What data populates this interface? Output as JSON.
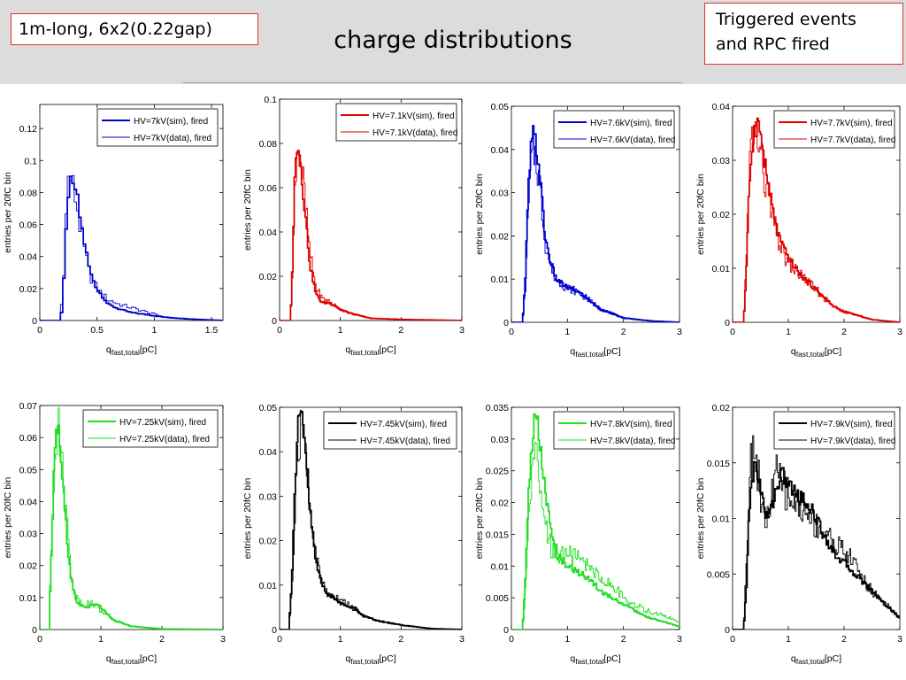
{
  "header": {
    "left_box": "1m-long, 6x2(0.22gap)",
    "title": "charge distributions",
    "right_box_line1": "Triggered events",
    "right_box_line2": "and RPC fired"
  },
  "chart_data": [
    {
      "type": "line",
      "xlabel": "q_fast,total[pC]",
      "ylabel": "entries per 20fC bin",
      "xlim": [
        0,
        1.6
      ],
      "ylim": [
        0,
        0.135
      ],
      "xticks": [
        "0",
        "0.5",
        "1",
        "1.5"
      ],
      "xtick_values": [
        0,
        0.5,
        1,
        1.5
      ],
      "yticks": [
        "0",
        "0.02",
        "0.04",
        "0.06",
        "0.08",
        "0.1",
        "0.12"
      ],
      "ytick_values": [
        0,
        0.02,
        0.04,
        0.06,
        0.08,
        0.1,
        0.12
      ],
      "color": "#0000cc",
      "series": [
        {
          "name": "HV=7kV(sim), fired",
          "kind": "sim",
          "x": [
            0.1,
            0.18,
            0.2,
            0.22,
            0.24,
            0.26,
            0.28,
            0.3,
            0.32,
            0.34,
            0.36,
            0.4,
            0.44,
            0.5,
            0.55,
            0.6,
            0.7,
            0.8,
            0.9,
            1.0,
            1.1,
            1.3,
            1.6
          ],
          "y": [
            0,
            0,
            0.01,
            0.04,
            0.07,
            0.09,
            0.08,
            0.085,
            0.08,
            0.07,
            0.06,
            0.045,
            0.03,
            0.02,
            0.015,
            0.01,
            0.007,
            0.005,
            0.004,
            0.003,
            0.002,
            0.001,
            0
          ]
        },
        {
          "name": "HV=7kV(data), fired",
          "kind": "data",
          "x": [
            0.1,
            0.17,
            0.2,
            0.22,
            0.24,
            0.26,
            0.28,
            0.3,
            0.32,
            0.34,
            0.36,
            0.4,
            0.44,
            0.5,
            0.55,
            0.6,
            0.7,
            0.8,
            0.9,
            1.0,
            1.1,
            1.3,
            1.6
          ],
          "y": [
            0,
            0,
            0.015,
            0.05,
            0.08,
            0.095,
            0.085,
            0.08,
            0.075,
            0.065,
            0.055,
            0.04,
            0.028,
            0.02,
            0.016,
            0.013,
            0.01,
            0.008,
            0.006,
            0.004,
            0.002,
            0.001,
            0
          ]
        }
      ]
    },
    {
      "type": "line",
      "xlabel": "q_fast,total[pC]",
      "ylabel": "entries per 20fC bin",
      "xlim": [
        0,
        3
      ],
      "ylim": [
        0,
        0.1
      ],
      "xticks": [
        "0",
        "1",
        "2",
        "3"
      ],
      "xtick_values": [
        0,
        1,
        2,
        3
      ],
      "yticks": [
        "0",
        "0.02",
        "0.04",
        "0.06",
        "0.08",
        "0.1"
      ],
      "ytick_values": [
        0,
        0.02,
        0.04,
        0.06,
        0.08,
        0.1
      ],
      "color": "#dd0000",
      "series": [
        {
          "name": "HV=7.1kV(sim), fired",
          "kind": "sim",
          "x": [
            0.1,
            0.18,
            0.22,
            0.26,
            0.3,
            0.35,
            0.4,
            0.45,
            0.5,
            0.6,
            0.7,
            0.8,
            0.9,
            1.0,
            1.2,
            1.5,
            2.0,
            3.0
          ],
          "y": [
            0,
            0,
            0.03,
            0.075,
            0.082,
            0.07,
            0.055,
            0.04,
            0.025,
            0.012,
            0.008,
            0.008,
            0.007,
            0.005,
            0.003,
            0.001,
            0.0005,
            0
          ]
        },
        {
          "name": "HV=7.1kV(data), fired",
          "kind": "data",
          "x": [
            0.1,
            0.18,
            0.22,
            0.26,
            0.3,
            0.35,
            0.4,
            0.45,
            0.5,
            0.6,
            0.7,
            0.8,
            0.9,
            1.0,
            1.2,
            1.5,
            2.0,
            3.0
          ],
          "y": [
            0,
            0,
            0.025,
            0.07,
            0.08,
            0.072,
            0.06,
            0.045,
            0.03,
            0.015,
            0.01,
            0.009,
            0.007,
            0.005,
            0.003,
            0.001,
            0.0005,
            0
          ]
        }
      ]
    },
    {
      "type": "line",
      "xlabel": "q_fast,total[pC]",
      "ylabel": "entries per 20fC bin",
      "xlim": [
        0,
        3
      ],
      "ylim": [
        0,
        0.05
      ],
      "xticks": [
        "0",
        "1",
        "2",
        "3"
      ],
      "xtick_values": [
        0,
        1,
        2,
        3
      ],
      "yticks": [
        "0",
        "0.01",
        "0.02",
        "0.03",
        "0.04",
        "0.05"
      ],
      "ytick_values": [
        0,
        0.01,
        0.02,
        0.03,
        0.04,
        0.05
      ],
      "color": "#0000cc",
      "series": [
        {
          "name": "HV=7.6kV(sim), fired",
          "kind": "sim",
          "x": [
            0.1,
            0.2,
            0.25,
            0.3,
            0.35,
            0.4,
            0.45,
            0.5,
            0.55,
            0.6,
            0.7,
            0.8,
            1.0,
            1.2,
            1.4,
            1.6,
            1.8,
            2.0,
            2.5,
            3.0
          ],
          "y": [
            0,
            0,
            0.01,
            0.03,
            0.04,
            0.044,
            0.04,
            0.035,
            0.028,
            0.02,
            0.014,
            0.01,
            0.008,
            0.007,
            0.005,
            0.003,
            0.002,
            0.001,
            0.0003,
            0
          ]
        },
        {
          "name": "HV=7.6kV(data), fired",
          "kind": "data",
          "x": [
            0.1,
            0.2,
            0.25,
            0.3,
            0.35,
            0.4,
            0.45,
            0.5,
            0.55,
            0.6,
            0.7,
            0.8,
            1.0,
            1.2,
            1.4,
            1.6,
            1.8,
            2.0,
            2.5,
            3.0
          ],
          "y": [
            0,
            0,
            0.008,
            0.025,
            0.036,
            0.04,
            0.038,
            0.033,
            0.026,
            0.019,
            0.013,
            0.01,
            0.008,
            0.007,
            0.005,
            0.003,
            0.002,
            0.001,
            0.0003,
            0
          ]
        }
      ]
    },
    {
      "type": "line",
      "xlabel": "q_fast,total[pC]",
      "ylabel": "entries per 20fC bin",
      "xlim": [
        0,
        3
      ],
      "ylim": [
        0,
        0.04
      ],
      "xticks": [
        "0",
        "1",
        "2",
        "3"
      ],
      "xtick_values": [
        0,
        1,
        2,
        3
      ],
      "yticks": [
        "0",
        "0.01",
        "0.02",
        "0.03",
        "0.04"
      ],
      "ytick_values": [
        0,
        0.01,
        0.02,
        0.03,
        0.04
      ],
      "color": "#dd0000",
      "series": [
        {
          "name": "HV=7.7kV(sim), fired",
          "kind": "sim",
          "x": [
            0.1,
            0.2,
            0.25,
            0.3,
            0.35,
            0.4,
            0.45,
            0.5,
            0.6,
            0.7,
            0.8,
            0.9,
            1.0,
            1.2,
            1.4,
            1.6,
            1.8,
            2.0,
            2.5,
            3.0
          ],
          "y": [
            0,
            0,
            0.01,
            0.025,
            0.033,
            0.036,
            0.037,
            0.035,
            0.028,
            0.022,
            0.017,
            0.014,
            0.012,
            0.009,
            0.007,
            0.005,
            0.003,
            0.002,
            0.0005,
            0
          ]
        },
        {
          "name": "HV=7.7kV(data), fired",
          "kind": "data",
          "x": [
            0.1,
            0.2,
            0.25,
            0.3,
            0.35,
            0.4,
            0.45,
            0.5,
            0.6,
            0.7,
            0.8,
            0.9,
            1.0,
            1.2,
            1.4,
            1.6,
            1.8,
            2.0,
            2.5,
            3.0
          ],
          "y": [
            0,
            0,
            0.012,
            0.028,
            0.034,
            0.035,
            0.034,
            0.031,
            0.025,
            0.02,
            0.016,
            0.013,
            0.011,
            0.009,
            0.007,
            0.005,
            0.003,
            0.002,
            0.0005,
            0
          ]
        }
      ]
    },
    {
      "type": "line",
      "xlabel": "q_fast,total[pC]",
      "ylabel": "entries per 20fC bin",
      "xlim": [
        0,
        3
      ],
      "ylim": [
        0,
        0.07
      ],
      "xticks": [
        "0",
        "1",
        "2",
        "3"
      ],
      "xtick_values": [
        0,
        1,
        2,
        3
      ],
      "yticks": [
        "0",
        "0.01",
        "0.02",
        "0.03",
        "0.04",
        "0.05",
        "0.06",
        "0.07"
      ],
      "ytick_values": [
        0,
        0.01,
        0.02,
        0.03,
        0.04,
        0.05,
        0.06,
        0.07
      ],
      "color": "#22dd22",
      "series": [
        {
          "name": "HV=7.25kV(sim), fired",
          "kind": "sim",
          "x": [
            0.05,
            0.15,
            0.2,
            0.25,
            0.3,
            0.35,
            0.4,
            0.45,
            0.5,
            0.55,
            0.6,
            0.7,
            0.8,
            0.9,
            1.0,
            1.2,
            1.5,
            2.0,
            3.0
          ],
          "y": [
            0,
            0,
            0.03,
            0.06,
            0.065,
            0.055,
            0.04,
            0.028,
            0.018,
            0.012,
            0.009,
            0.007,
            0.007,
            0.008,
            0.007,
            0.003,
            0.001,
            0.0002,
            0
          ]
        },
        {
          "name": "HV=7.25kV(data), fired",
          "kind": "data",
          "x": [
            0.05,
            0.15,
            0.2,
            0.25,
            0.3,
            0.35,
            0.4,
            0.45,
            0.5,
            0.55,
            0.6,
            0.7,
            0.8,
            0.9,
            1.0,
            1.2,
            1.5,
            2.0,
            3.0
          ],
          "y": [
            0,
            0,
            0.035,
            0.058,
            0.062,
            0.057,
            0.045,
            0.032,
            0.02,
            0.014,
            0.01,
            0.008,
            0.008,
            0.008,
            0.006,
            0.003,
            0.001,
            0.0002,
            0
          ]
        }
      ]
    },
    {
      "type": "line",
      "xlabel": "q_fast,total[pC]",
      "ylabel": "entries per 20fC bin",
      "xlim": [
        0,
        3
      ],
      "ylim": [
        0,
        0.05
      ],
      "xticks": [
        "0",
        "1",
        "2",
        "3"
      ],
      "xtick_values": [
        0,
        1,
        2,
        3
      ],
      "yticks": [
        "0",
        "0.01",
        "0.02",
        "0.03",
        "0.04",
        "0.05"
      ],
      "ytick_values": [
        0,
        0.01,
        0.02,
        0.03,
        0.04,
        0.05
      ],
      "color": "#000000",
      "series": [
        {
          "name": "HV=7.45kV(sim), fired",
          "kind": "sim",
          "x": [
            0.05,
            0.15,
            0.2,
            0.25,
            0.3,
            0.35,
            0.4,
            0.45,
            0.5,
            0.6,
            0.7,
            0.8,
            1.0,
            1.2,
            1.4,
            1.6,
            2.0,
            2.5,
            3.0
          ],
          "y": [
            0,
            0,
            0.01,
            0.03,
            0.045,
            0.048,
            0.044,
            0.036,
            0.027,
            0.015,
            0.01,
            0.008,
            0.006,
            0.005,
            0.003,
            0.002,
            0.001,
            0.0002,
            0
          ]
        },
        {
          "name": "HV=7.45kV(data), fired",
          "kind": "data",
          "x": [
            0.05,
            0.15,
            0.2,
            0.25,
            0.3,
            0.35,
            0.4,
            0.45,
            0.5,
            0.6,
            0.7,
            0.8,
            1.0,
            1.2,
            1.4,
            1.6,
            2.0,
            2.5,
            3.0
          ],
          "y": [
            0,
            0,
            0.008,
            0.025,
            0.04,
            0.045,
            0.043,
            0.037,
            0.028,
            0.016,
            0.011,
            0.008,
            0.007,
            0.005,
            0.003,
            0.002,
            0.001,
            0.0002,
            0
          ]
        }
      ]
    },
    {
      "type": "line",
      "xlabel": "q_fast,total[pC]",
      "ylabel": "entries per 20fC bin",
      "xlim": [
        0,
        3
      ],
      "ylim": [
        0,
        0.035
      ],
      "xticks": [
        "0",
        "1",
        "2",
        "3"
      ],
      "xtick_values": [
        0,
        1,
        2,
        3
      ],
      "yticks": [
        "0",
        "0.005",
        "0.01",
        "0.015",
        "0.02",
        "0.025",
        "0.03",
        "0.035"
      ],
      "ytick_values": [
        0,
        0.005,
        0.01,
        0.015,
        0.02,
        0.025,
        0.03,
        0.035
      ],
      "color": "#22dd22",
      "series": [
        {
          "name": "HV=7.8kV(sim), fired",
          "kind": "sim",
          "x": [
            0.1,
            0.2,
            0.25,
            0.3,
            0.35,
            0.4,
            0.45,
            0.5,
            0.6,
            0.7,
            0.8,
            1.0,
            1.2,
            1.4,
            1.6,
            1.8,
            2.0,
            2.4,
            2.8,
            3.0
          ],
          "y": [
            0,
            0,
            0.008,
            0.02,
            0.028,
            0.032,
            0.033,
            0.03,
            0.022,
            0.016,
            0.012,
            0.01,
            0.009,
            0.008,
            0.006,
            0.005,
            0.004,
            0.002,
            0.001,
            0.0005
          ]
        },
        {
          "name": "HV=7.8kV(data), fired",
          "kind": "data",
          "x": [
            0.1,
            0.2,
            0.25,
            0.3,
            0.35,
            0.4,
            0.45,
            0.5,
            0.6,
            0.7,
            0.8,
            1.0,
            1.2,
            1.4,
            1.6,
            1.8,
            2.0,
            2.4,
            2.8,
            3.0
          ],
          "y": [
            0,
            0,
            0.006,
            0.015,
            0.022,
            0.027,
            0.026,
            0.022,
            0.016,
            0.013,
            0.012,
            0.012,
            0.011,
            0.01,
            0.008,
            0.007,
            0.005,
            0.003,
            0.002,
            0.001
          ]
        }
      ]
    },
    {
      "type": "line",
      "xlabel": "q_fast,total[pC]",
      "ylabel": "entries per 20fC bin",
      "xlim": [
        0,
        3
      ],
      "ylim": [
        0,
        0.02
      ],
      "xticks": [
        "0",
        "1",
        "2",
        "3"
      ],
      "xtick_values": [
        0,
        1,
        2,
        3
      ],
      "yticks": [
        "0",
        "0.005",
        "0.01",
        "0.015",
        "0.02"
      ],
      "ytick_values": [
        0,
        0.005,
        0.01,
        0.015,
        0.02
      ],
      "color": "#000000",
      "series": [
        {
          "name": "HV=7.9kV(sim), fired",
          "kind": "sim",
          "x": [
            0.1,
            0.2,
            0.25,
            0.3,
            0.4,
            0.5,
            0.6,
            0.7,
            0.8,
            0.9,
            1.0,
            1.2,
            1.4,
            1.6,
            1.8,
            2.0,
            2.2,
            2.4,
            2.6,
            2.8,
            3.0
          ],
          "y": [
            0,
            0,
            0.004,
            0.011,
            0.015,
            0.013,
            0.01,
            0.011,
            0.013,
            0.014,
            0.013,
            0.012,
            0.011,
            0.009,
            0.007,
            0.006,
            0.005,
            0.004,
            0.003,
            0.002,
            0.001
          ]
        },
        {
          "name": "HV=7.9kV(data), fired",
          "kind": "data",
          "x": [
            0.1,
            0.2,
            0.25,
            0.3,
            0.4,
            0.5,
            0.6,
            0.7,
            0.8,
            0.9,
            1.0,
            1.2,
            1.4,
            1.6,
            1.8,
            2.0,
            2.2,
            2.4,
            2.6,
            2.8,
            3.0
          ],
          "y": [
            0,
            0,
            0.006,
            0.014,
            0.017,
            0.012,
            0.009,
            0.012,
            0.014,
            0.013,
            0.012,
            0.011,
            0.01,
            0.009,
            0.008,
            0.007,
            0.006,
            0.004,
            0.003,
            0.002,
            0.001
          ]
        }
      ]
    }
  ]
}
